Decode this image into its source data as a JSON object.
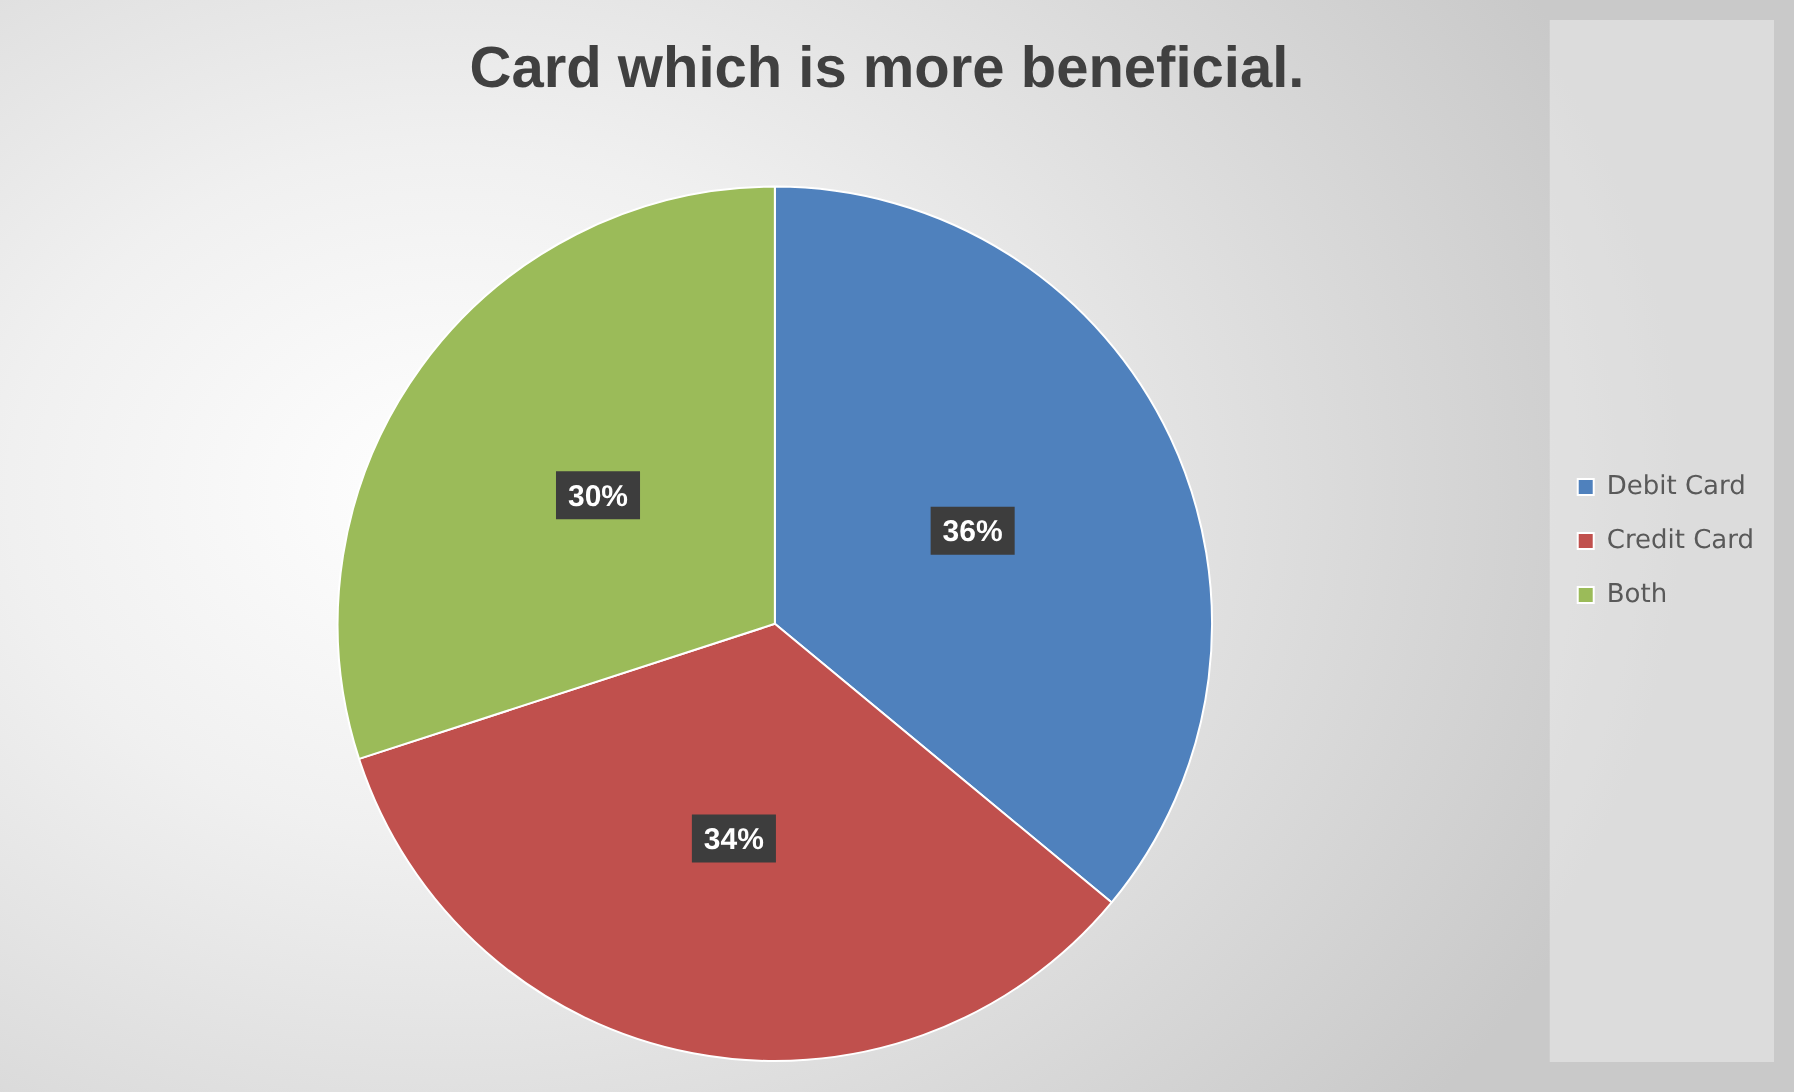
{
  "chart_data": {
    "type": "pie",
    "title": "Card which is more beneficial.",
    "categories": [
      "Debit Card",
      "Credit Card",
      "Both"
    ],
    "values": [
      36,
      34,
      30
    ],
    "colors": [
      "#4f81bd",
      "#c0504d",
      "#9bbb59"
    ],
    "value_labels": [
      "36%",
      "34%",
      "30%"
    ],
    "legend": "right"
  }
}
